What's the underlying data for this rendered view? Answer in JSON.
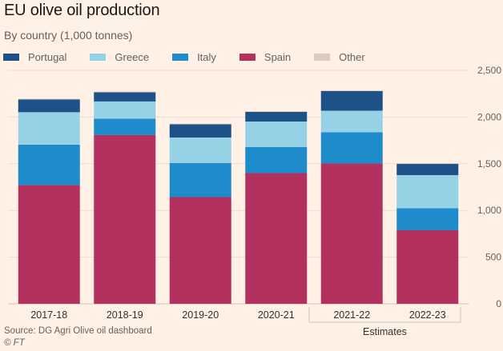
{
  "title": "EU olive oil production",
  "subtitle": "By country (1,000 tonnes)",
  "source": "Source: DG Agri Olive oil dashboard",
  "copyright": "© FT",
  "legend": [
    {
      "name": "Portugal",
      "color": "#1f5189"
    },
    {
      "name": "Greece",
      "color": "#96d2e6"
    },
    {
      "name": "Italy",
      "color": "#1e8bca"
    },
    {
      "name": "Spain",
      "color": "#b3315e"
    },
    {
      "name": "Other",
      "color": "#d9ccc3"
    }
  ],
  "chart_data": {
    "type": "bar",
    "stacked": true,
    "title": "EU olive oil production",
    "subtitle": "By country (1,000 tonnes)",
    "xlabel": "",
    "ylabel": "",
    "categories": [
      "2017-18",
      "2018-19",
      "2019-20",
      "2020-21",
      "2021-22",
      "2022-23"
    ],
    "series": [
      {
        "name": "Spain",
        "color": "#b3315e",
        "values": [
          1272,
          1807,
          1143,
          1400,
          1503,
          788
        ]
      },
      {
        "name": "Italy",
        "color": "#1e8bca",
        "values": [
          433,
          176,
          364,
          278,
          334,
          235
        ]
      },
      {
        "name": "Greece",
        "color": "#96d2e6",
        "values": [
          347,
          184,
          274,
          274,
          231,
          355
        ]
      },
      {
        "name": "Portugal",
        "color": "#1f5189",
        "values": [
          137,
          98,
          141,
          103,
          210,
          120
        ]
      },
      {
        "name": "Other",
        "color": "#d9ccc3",
        "values": [
          8,
          8,
          8,
          8,
          8,
          8
        ]
      }
    ],
    "ylim": [
      0,
      2500
    ],
    "yticks": [
      0,
      500,
      1000,
      1500,
      2000,
      2500
    ],
    "ytick_labels": [
      "0",
      "500",
      "1,000",
      "1,500",
      "2,000",
      "2,500"
    ],
    "y_axis_side": "right",
    "grid": true,
    "legend_position": "top-left",
    "annotations": [
      {
        "label": "Estimates",
        "categories": [
          "2021-22",
          "2022-23"
        ]
      }
    ]
  }
}
